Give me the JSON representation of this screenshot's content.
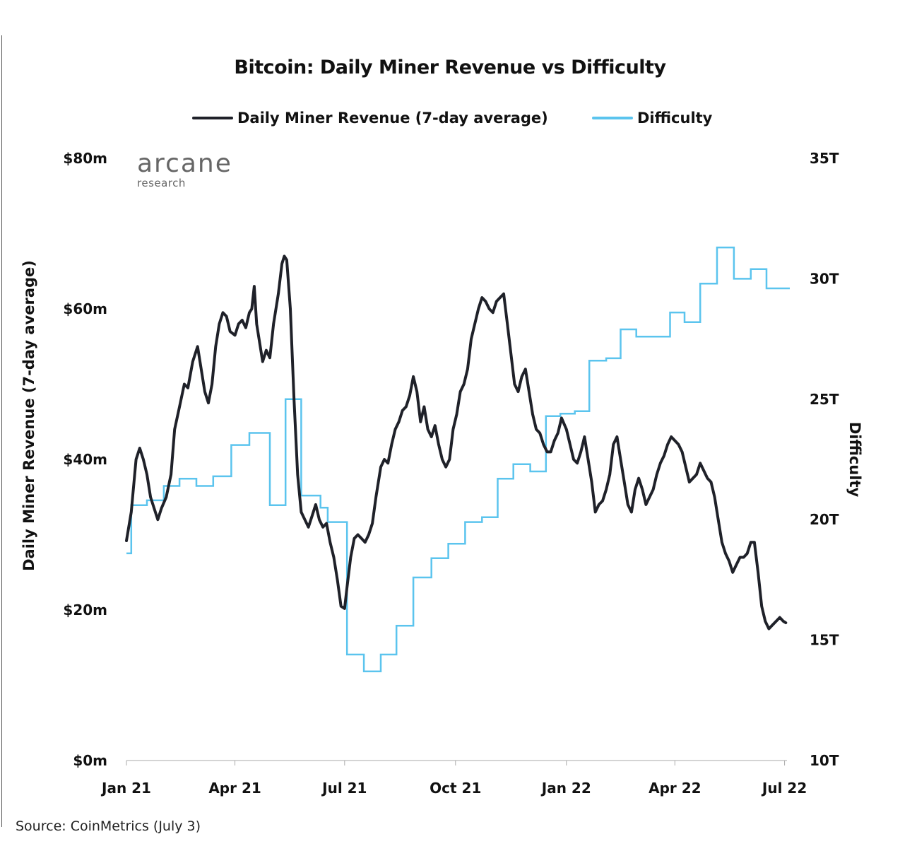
{
  "title": "Bitcoin: Daily Miner Revenue vs Difficulty",
  "source": "Source: CoinMetrics (July 3)",
  "logo": {
    "main": "arcane",
    "sub": "research"
  },
  "colors": {
    "revenue": "#1f2129",
    "difficulty": "#5bc4ee",
    "axis": "#aaaaaa"
  },
  "chart_data": {
    "type": "line",
    "x_axis": {
      "range": [
        "2021-01-01",
        "2022-07-03"
      ],
      "ticks": [
        {
          "date": "2021-01-01",
          "label": "Jan 21"
        },
        {
          "date": "2021-04-01",
          "label": "Apr 21"
        },
        {
          "date": "2021-07-01",
          "label": "Jul 21"
        },
        {
          "date": "2021-10-01",
          "label": "Oct 21"
        },
        {
          "date": "2022-01-01",
          "label": "Jan 22"
        },
        {
          "date": "2022-04-01",
          "label": "Apr 22"
        },
        {
          "date": "2022-07-01",
          "label": "Jul 22"
        }
      ]
    },
    "y_left": {
      "label": "Daily Miner Revenue (7-day average)",
      "unit": "USD millions",
      "range": [
        0,
        80
      ],
      "ticks": [
        {
          "v": 0,
          "label": "$0m"
        },
        {
          "v": 20,
          "label": "$20m"
        },
        {
          "v": 40,
          "label": "$40m"
        },
        {
          "v": 60,
          "label": "$60m"
        },
        {
          "v": 80,
          "label": "$80m"
        }
      ]
    },
    "y_right": {
      "label": "Difficulty",
      "unit": "T",
      "range": [
        10,
        35
      ],
      "ticks": [
        {
          "v": 10,
          "label": "10T"
        },
        {
          "v": 15,
          "label": "15T"
        },
        {
          "v": 20,
          "label": "20T"
        },
        {
          "v": 25,
          "label": "25T"
        },
        {
          "v": 30,
          "label": "30T"
        },
        {
          "v": 35,
          "label": "35T"
        }
      ]
    },
    "grid": false,
    "legend_position": "top-center",
    "series": [
      {
        "name": "Daily Miner Revenue (7-day average)",
        "axis": "left",
        "points": [
          [
            "2021-01-01",
            29.2
          ],
          [
            "2021-01-05",
            33
          ],
          [
            "2021-01-09",
            40
          ],
          [
            "2021-01-12",
            41.5
          ],
          [
            "2021-01-15",
            40
          ],
          [
            "2021-01-18",
            38
          ],
          [
            "2021-01-21",
            35
          ],
          [
            "2021-01-24",
            33.5
          ],
          [
            "2021-01-27",
            32
          ],
          [
            "2021-01-30",
            33.5
          ],
          [
            "2021-02-03",
            35
          ],
          [
            "2021-02-07",
            38
          ],
          [
            "2021-02-10",
            44
          ],
          [
            "2021-02-14",
            47
          ],
          [
            "2021-02-18",
            50
          ],
          [
            "2021-02-21",
            49.5
          ],
          [
            "2021-02-25",
            53
          ],
          [
            "2021-03-01",
            55
          ],
          [
            "2021-03-04",
            52
          ],
          [
            "2021-03-07",
            49
          ],
          [
            "2021-03-10",
            47.5
          ],
          [
            "2021-03-13",
            50
          ],
          [
            "2021-03-16",
            55
          ],
          [
            "2021-03-19",
            58
          ],
          [
            "2021-03-22",
            59.5
          ],
          [
            "2021-03-25",
            59
          ],
          [
            "2021-03-28",
            57
          ],
          [
            "2021-04-01",
            56.5
          ],
          [
            "2021-04-04",
            58
          ],
          [
            "2021-04-07",
            58.5
          ],
          [
            "2021-04-10",
            57.5
          ],
          [
            "2021-04-13",
            59.5
          ],
          [
            "2021-04-15",
            60
          ],
          [
            "2021-04-17",
            63
          ],
          [
            "2021-04-19",
            58
          ],
          [
            "2021-04-22",
            55
          ],
          [
            "2021-04-24",
            53
          ],
          [
            "2021-04-27",
            54.5
          ],
          [
            "2021-04-30",
            53.5
          ],
          [
            "2021-05-03",
            58
          ],
          [
            "2021-05-07",
            62
          ],
          [
            "2021-05-10",
            66
          ],
          [
            "2021-05-12",
            67
          ],
          [
            "2021-05-14",
            66.5
          ],
          [
            "2021-05-17",
            60
          ],
          [
            "2021-05-20",
            48
          ],
          [
            "2021-05-23",
            38
          ],
          [
            "2021-05-26",
            33
          ],
          [
            "2021-05-29",
            32
          ],
          [
            "2021-06-01",
            31
          ],
          [
            "2021-06-04",
            32.5
          ],
          [
            "2021-06-07",
            34
          ],
          [
            "2021-06-10",
            32
          ],
          [
            "2021-06-13",
            31
          ],
          [
            "2021-06-16",
            31.5
          ],
          [
            "2021-06-19",
            29
          ],
          [
            "2021-06-22",
            27
          ],
          [
            "2021-06-25",
            24
          ],
          [
            "2021-06-28",
            20.5
          ],
          [
            "2021-07-01",
            20.2
          ],
          [
            "2021-07-03",
            23
          ],
          [
            "2021-07-06",
            27
          ],
          [
            "2021-07-09",
            29.5
          ],
          [
            "2021-07-12",
            30
          ],
          [
            "2021-07-15",
            29.5
          ],
          [
            "2021-07-18",
            29
          ],
          [
            "2021-07-21",
            30
          ],
          [
            "2021-07-24",
            31.5
          ],
          [
            "2021-07-27",
            35
          ],
          [
            "2021-07-31",
            39
          ],
          [
            "2021-08-03",
            40
          ],
          [
            "2021-08-06",
            39.5
          ],
          [
            "2021-08-09",
            42
          ],
          [
            "2021-08-12",
            44
          ],
          [
            "2021-08-15",
            45
          ],
          [
            "2021-08-18",
            46.5
          ],
          [
            "2021-08-21",
            47
          ],
          [
            "2021-08-24",
            48.5
          ],
          [
            "2021-08-27",
            51
          ],
          [
            "2021-08-30",
            49
          ],
          [
            "2021-09-02",
            45
          ],
          [
            "2021-09-05",
            47
          ],
          [
            "2021-09-08",
            44
          ],
          [
            "2021-09-11",
            43
          ],
          [
            "2021-09-14",
            44.5
          ],
          [
            "2021-09-17",
            42
          ],
          [
            "2021-09-20",
            40
          ],
          [
            "2021-09-23",
            39
          ],
          [
            "2021-09-26",
            40
          ],
          [
            "2021-09-29",
            44
          ],
          [
            "2021-10-02",
            46
          ],
          [
            "2021-10-05",
            49
          ],
          [
            "2021-10-08",
            50
          ],
          [
            "2021-10-11",
            52
          ],
          [
            "2021-10-14",
            56
          ],
          [
            "2021-10-17",
            58
          ],
          [
            "2021-10-20",
            60
          ],
          [
            "2021-10-23",
            61.5
          ],
          [
            "2021-10-26",
            61
          ],
          [
            "2021-10-29",
            60
          ],
          [
            "2021-11-01",
            59.5
          ],
          [
            "2021-11-04",
            61
          ],
          [
            "2021-11-07",
            61.5
          ],
          [
            "2021-11-10",
            62
          ],
          [
            "2021-11-13",
            58
          ],
          [
            "2021-11-16",
            54
          ],
          [
            "2021-11-19",
            50
          ],
          [
            "2021-11-22",
            49
          ],
          [
            "2021-11-25",
            51
          ],
          [
            "2021-11-28",
            52
          ],
          [
            "2021-12-01",
            49
          ],
          [
            "2021-12-04",
            46
          ],
          [
            "2021-12-07",
            44
          ],
          [
            "2021-12-10",
            43.5
          ],
          [
            "2021-12-13",
            42
          ],
          [
            "2021-12-16",
            41
          ],
          [
            "2021-12-19",
            41
          ],
          [
            "2021-12-22",
            42.5
          ],
          [
            "2021-12-25",
            43.5
          ],
          [
            "2021-12-28",
            45.5
          ],
          [
            "2022-01-01",
            44
          ],
          [
            "2022-01-04",
            42
          ],
          [
            "2022-01-07",
            40
          ],
          [
            "2022-01-10",
            39.5
          ],
          [
            "2022-01-13",
            41
          ],
          [
            "2022-01-16",
            43
          ],
          [
            "2022-01-19",
            40
          ],
          [
            "2022-01-22",
            37
          ],
          [
            "2022-01-25",
            33
          ],
          [
            "2022-01-28",
            34
          ],
          [
            "2022-01-31",
            34.5
          ],
          [
            "2022-02-03",
            36
          ],
          [
            "2022-02-06",
            38
          ],
          [
            "2022-02-09",
            42
          ],
          [
            "2022-02-12",
            43
          ],
          [
            "2022-02-15",
            40
          ],
          [
            "2022-02-18",
            37
          ],
          [
            "2022-02-21",
            34
          ],
          [
            "2022-02-24",
            33
          ],
          [
            "2022-02-27",
            36
          ],
          [
            "2022-03-02",
            37.5
          ],
          [
            "2022-03-05",
            36
          ],
          [
            "2022-03-08",
            34
          ],
          [
            "2022-03-11",
            35
          ],
          [
            "2022-03-14",
            36
          ],
          [
            "2022-03-17",
            38
          ],
          [
            "2022-03-20",
            39.5
          ],
          [
            "2022-03-23",
            40.5
          ],
          [
            "2022-03-26",
            42
          ],
          [
            "2022-03-29",
            43
          ],
          [
            "2022-04-01",
            42.5
          ],
          [
            "2022-04-04",
            42
          ],
          [
            "2022-04-07",
            41
          ],
          [
            "2022-04-10",
            39
          ],
          [
            "2022-04-13",
            37
          ],
          [
            "2022-04-16",
            37.5
          ],
          [
            "2022-04-19",
            38
          ],
          [
            "2022-04-22",
            39.5
          ],
          [
            "2022-04-25",
            38.5
          ],
          [
            "2022-04-28",
            37.5
          ],
          [
            "2022-05-01",
            37
          ],
          [
            "2022-05-04",
            35
          ],
          [
            "2022-05-07",
            32
          ],
          [
            "2022-05-10",
            29
          ],
          [
            "2022-05-13",
            27.5
          ],
          [
            "2022-05-16",
            26.5
          ],
          [
            "2022-05-19",
            25
          ],
          [
            "2022-05-22",
            26
          ],
          [
            "2022-05-25",
            27
          ],
          [
            "2022-05-28",
            27
          ],
          [
            "2022-05-31",
            27.5
          ],
          [
            "2022-06-03",
            29
          ],
          [
            "2022-06-06",
            29
          ],
          [
            "2022-06-09",
            25
          ],
          [
            "2022-06-12",
            20.5
          ],
          [
            "2022-06-15",
            18.5
          ],
          [
            "2022-06-18",
            17.5
          ],
          [
            "2022-06-21",
            18
          ],
          [
            "2022-06-24",
            18.5
          ],
          [
            "2022-06-27",
            19
          ],
          [
            "2022-06-30",
            18.5
          ],
          [
            "2022-07-02",
            18.3
          ]
        ]
      },
      {
        "name": "Difficulty",
        "axis": "right",
        "steps": [
          [
            "2021-01-01",
            18.6
          ],
          [
            "2021-01-05",
            20.6
          ],
          [
            "2021-01-18",
            20.8
          ],
          [
            "2021-02-01",
            21.4
          ],
          [
            "2021-02-14",
            21.7
          ],
          [
            "2021-02-28",
            21.4
          ],
          [
            "2021-03-14",
            21.8
          ],
          [
            "2021-03-29",
            23.1
          ],
          [
            "2021-04-13",
            23.6
          ],
          [
            "2021-04-30",
            20.6
          ],
          [
            "2021-05-13",
            25.0
          ],
          [
            "2021-05-26",
            21.0
          ],
          [
            "2021-06-11",
            20.5
          ],
          [
            "2021-06-17",
            19.9
          ],
          [
            "2021-07-03",
            14.4
          ],
          [
            "2021-07-17",
            13.7
          ],
          [
            "2021-07-31",
            14.4
          ],
          [
            "2021-08-13",
            15.6
          ],
          [
            "2021-08-27",
            17.6
          ],
          [
            "2021-09-11",
            18.4
          ],
          [
            "2021-09-25",
            19.0
          ],
          [
            "2021-10-09",
            19.9
          ],
          [
            "2021-10-23",
            20.1
          ],
          [
            "2021-11-05",
            21.7
          ],
          [
            "2021-11-18",
            22.3
          ],
          [
            "2021-12-02",
            22.0
          ],
          [
            "2021-12-15",
            24.3
          ],
          [
            "2021-12-27",
            24.4
          ],
          [
            "2022-01-08",
            24.5
          ],
          [
            "2022-01-20",
            26.6
          ],
          [
            "2022-02-03",
            26.7
          ],
          [
            "2022-02-15",
            27.9
          ],
          [
            "2022-02-28",
            27.6
          ],
          [
            "2022-03-14",
            27.6
          ],
          [
            "2022-03-28",
            28.6
          ],
          [
            "2022-04-09",
            28.2
          ],
          [
            "2022-04-22",
            29.8
          ],
          [
            "2022-05-06",
            31.3
          ],
          [
            "2022-05-20",
            30.0
          ],
          [
            "2022-06-03",
            30.4
          ],
          [
            "2022-06-16",
            29.6
          ],
          [
            "2022-07-01",
            29.6
          ]
        ]
      }
    ]
  }
}
